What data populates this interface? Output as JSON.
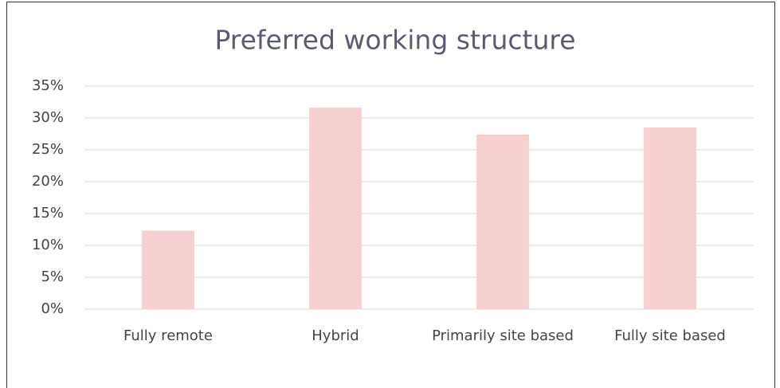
{
  "chart_data": {
    "type": "bar",
    "title": "Preferred working structure",
    "categories": [
      "Fully remote",
      "Hybrid",
      "Primarily site based",
      "Fully site based"
    ],
    "values": [
      12.3,
      31.6,
      27.4,
      28.5
    ],
    "color": "#f6d0d0",
    "ylim": [
      0,
      35
    ],
    "yticks": [
      {
        "value": 0,
        "label": "0%"
      },
      {
        "value": 5,
        "label": "5%"
      },
      {
        "value": 10,
        "label": "10%"
      },
      {
        "value": 15,
        "label": "15%"
      },
      {
        "value": 20,
        "label": "20%"
      },
      {
        "value": 25,
        "label": "25%"
      },
      {
        "value": 30,
        "label": "30%"
      },
      {
        "value": 35,
        "label": "35%"
      }
    ],
    "grid": true
  }
}
